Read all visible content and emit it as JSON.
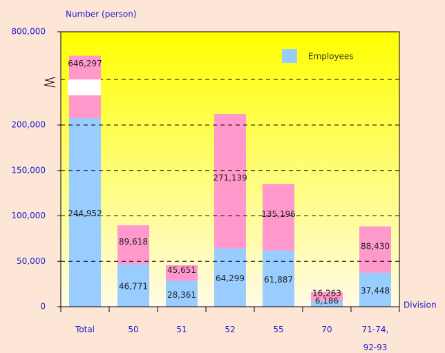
{
  "chart_data": {
    "type": "bar",
    "y_axis_label": "Number (person)",
    "x_axis_label": "Division",
    "categories": [
      "Total",
      "50",
      "51",
      "52",
      "55",
      "70",
      "71-74, 92-93"
    ],
    "series": [
      {
        "name": "Employees",
        "color": "#99ccff",
        "values": [
          244952,
          46771,
          28361,
          64299,
          61887,
          6186,
          37448
        ],
        "value_labels": [
          "244,952",
          "46,771",
          "28,361",
          "64,299",
          "61,887",
          "6,186",
          "37,448"
        ]
      },
      {
        "color": "#ff99cc",
        "values": [
          646297,
          89618,
          45651,
          271139,
          135196,
          16263,
          88430
        ],
        "value_labels": [
          "646,297",
          "89,618",
          "45,651",
          "271,139",
          "135,196",
          "16,263",
          "88,430"
        ]
      }
    ],
    "ylim": [
      0,
      800000
    ],
    "yticks": [
      {
        "value": 0,
        "label": "0"
      },
      {
        "value": 50000,
        "label": "50,000"
      },
      {
        "value": 100000,
        "label": "100,000"
      },
      {
        "value": 150000,
        "label": "150,000"
      },
      {
        "value": 200000,
        "label": "200,000"
      },
      {
        "value": 800000,
        "label": "800,000"
      }
    ],
    "axis_break": 200000,
    "grid": true,
    "legend": "top-right"
  }
}
